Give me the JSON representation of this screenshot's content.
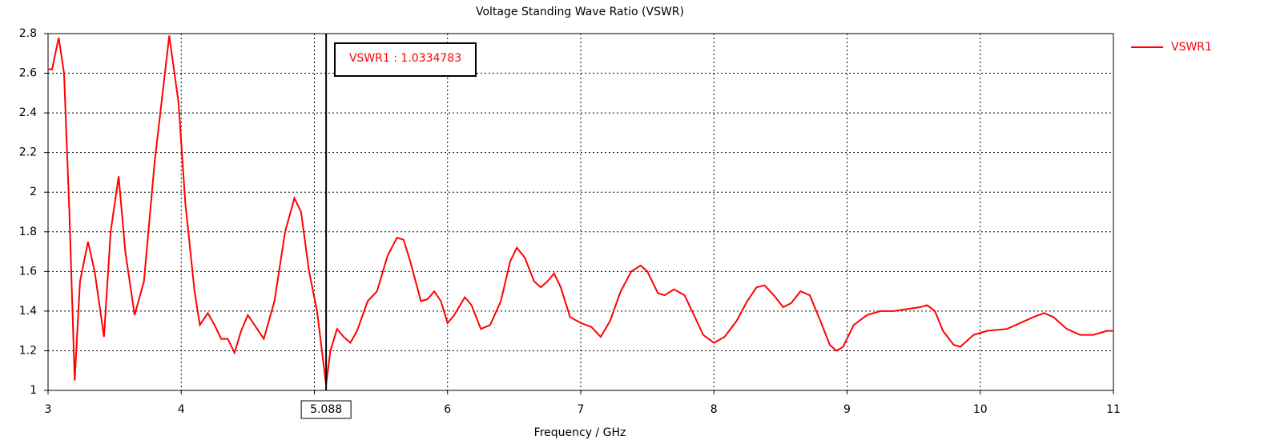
{
  "chart_data": {
    "type": "line",
    "title": "Voltage Standing Wave Ratio (VSWR)",
    "xlabel": "Frequency / GHz",
    "xlim": [
      3,
      11
    ],
    "xticks": [
      3,
      4,
      5,
      6,
      7,
      8,
      9,
      10,
      11
    ],
    "ylim": [
      1,
      2.8
    ],
    "yticks": [
      1,
      1.2,
      1.4,
      1.6,
      1.8,
      2,
      2.2,
      2.4,
      2.6,
      2.8
    ],
    "grid": true,
    "legend": "right",
    "marker": {
      "x": 5.088,
      "label": "VSWR1 : 1.0334783"
    },
    "x": [
      3.0,
      3.03,
      3.08,
      3.12,
      3.16,
      3.2,
      3.24,
      3.3,
      3.35,
      3.42,
      3.47,
      3.53,
      3.58,
      3.65,
      3.72,
      3.8,
      3.91,
      3.98,
      4.03,
      4.1,
      4.14,
      4.2,
      4.25,
      4.3,
      4.35,
      4.4,
      4.45,
      4.5,
      4.55,
      4.62,
      4.7,
      4.78,
      4.85,
      4.9,
      4.96,
      5.02,
      5.06,
      5.088,
      5.12,
      5.17,
      5.22,
      5.27,
      5.32,
      5.4,
      5.47,
      5.55,
      5.62,
      5.67,
      5.72,
      5.8,
      5.85,
      5.9,
      5.95,
      6.0,
      6.05,
      6.13,
      6.18,
      6.25,
      6.32,
      6.4,
      6.47,
      6.52,
      6.58,
      6.65,
      6.7,
      6.75,
      6.8,
      6.85,
      6.92,
      7.0,
      7.08,
      7.15,
      7.22,
      7.3,
      7.38,
      7.45,
      7.5,
      7.58,
      7.63,
      7.7,
      7.78,
      7.85,
      7.92,
      8.0,
      8.08,
      8.17,
      8.25,
      8.32,
      8.38,
      8.45,
      8.52,
      8.58,
      8.65,
      8.72,
      8.8,
      8.87,
      8.92,
      8.97,
      9.05,
      9.15,
      9.25,
      9.35,
      9.45,
      9.55,
      9.6,
      9.66,
      9.72,
      9.8,
      9.85,
      9.95,
      10.05,
      10.2,
      10.3,
      10.4,
      10.48,
      10.55,
      10.65,
      10.75,
      10.85,
      10.95,
      11.0
    ],
    "series": [
      {
        "name": "VSWR1",
        "color": "#ff0000",
        "values": [
          2.62,
          2.62,
          2.78,
          2.6,
          1.9,
          1.05,
          1.55,
          1.75,
          1.6,
          1.27,
          1.8,
          2.08,
          1.7,
          1.38,
          1.55,
          2.15,
          2.79,
          2.45,
          1.95,
          1.5,
          1.33,
          1.39,
          1.33,
          1.26,
          1.26,
          1.19,
          1.3,
          1.38,
          1.33,
          1.26,
          1.45,
          1.8,
          1.97,
          1.9,
          1.6,
          1.4,
          1.18,
          1.03,
          1.2,
          1.31,
          1.27,
          1.24,
          1.3,
          1.45,
          1.5,
          1.68,
          1.77,
          1.76,
          1.65,
          1.45,
          1.46,
          1.5,
          1.45,
          1.34,
          1.38,
          1.47,
          1.43,
          1.31,
          1.33,
          1.45,
          1.65,
          1.72,
          1.67,
          1.55,
          1.52,
          1.55,
          1.59,
          1.52,
          1.37,
          1.34,
          1.32,
          1.27,
          1.35,
          1.5,
          1.6,
          1.63,
          1.6,
          1.49,
          1.48,
          1.51,
          1.48,
          1.38,
          1.28,
          1.24,
          1.27,
          1.35,
          1.45,
          1.52,
          1.53,
          1.48,
          1.42,
          1.44,
          1.5,
          1.48,
          1.35,
          1.23,
          1.2,
          1.22,
          1.33,
          1.38,
          1.4,
          1.4,
          1.41,
          1.42,
          1.43,
          1.4,
          1.3,
          1.23,
          1.22,
          1.28,
          1.3,
          1.31,
          1.34,
          1.37,
          1.39,
          1.37,
          1.31,
          1.28,
          1.28,
          1.3,
          1.3
        ]
      }
    ]
  }
}
